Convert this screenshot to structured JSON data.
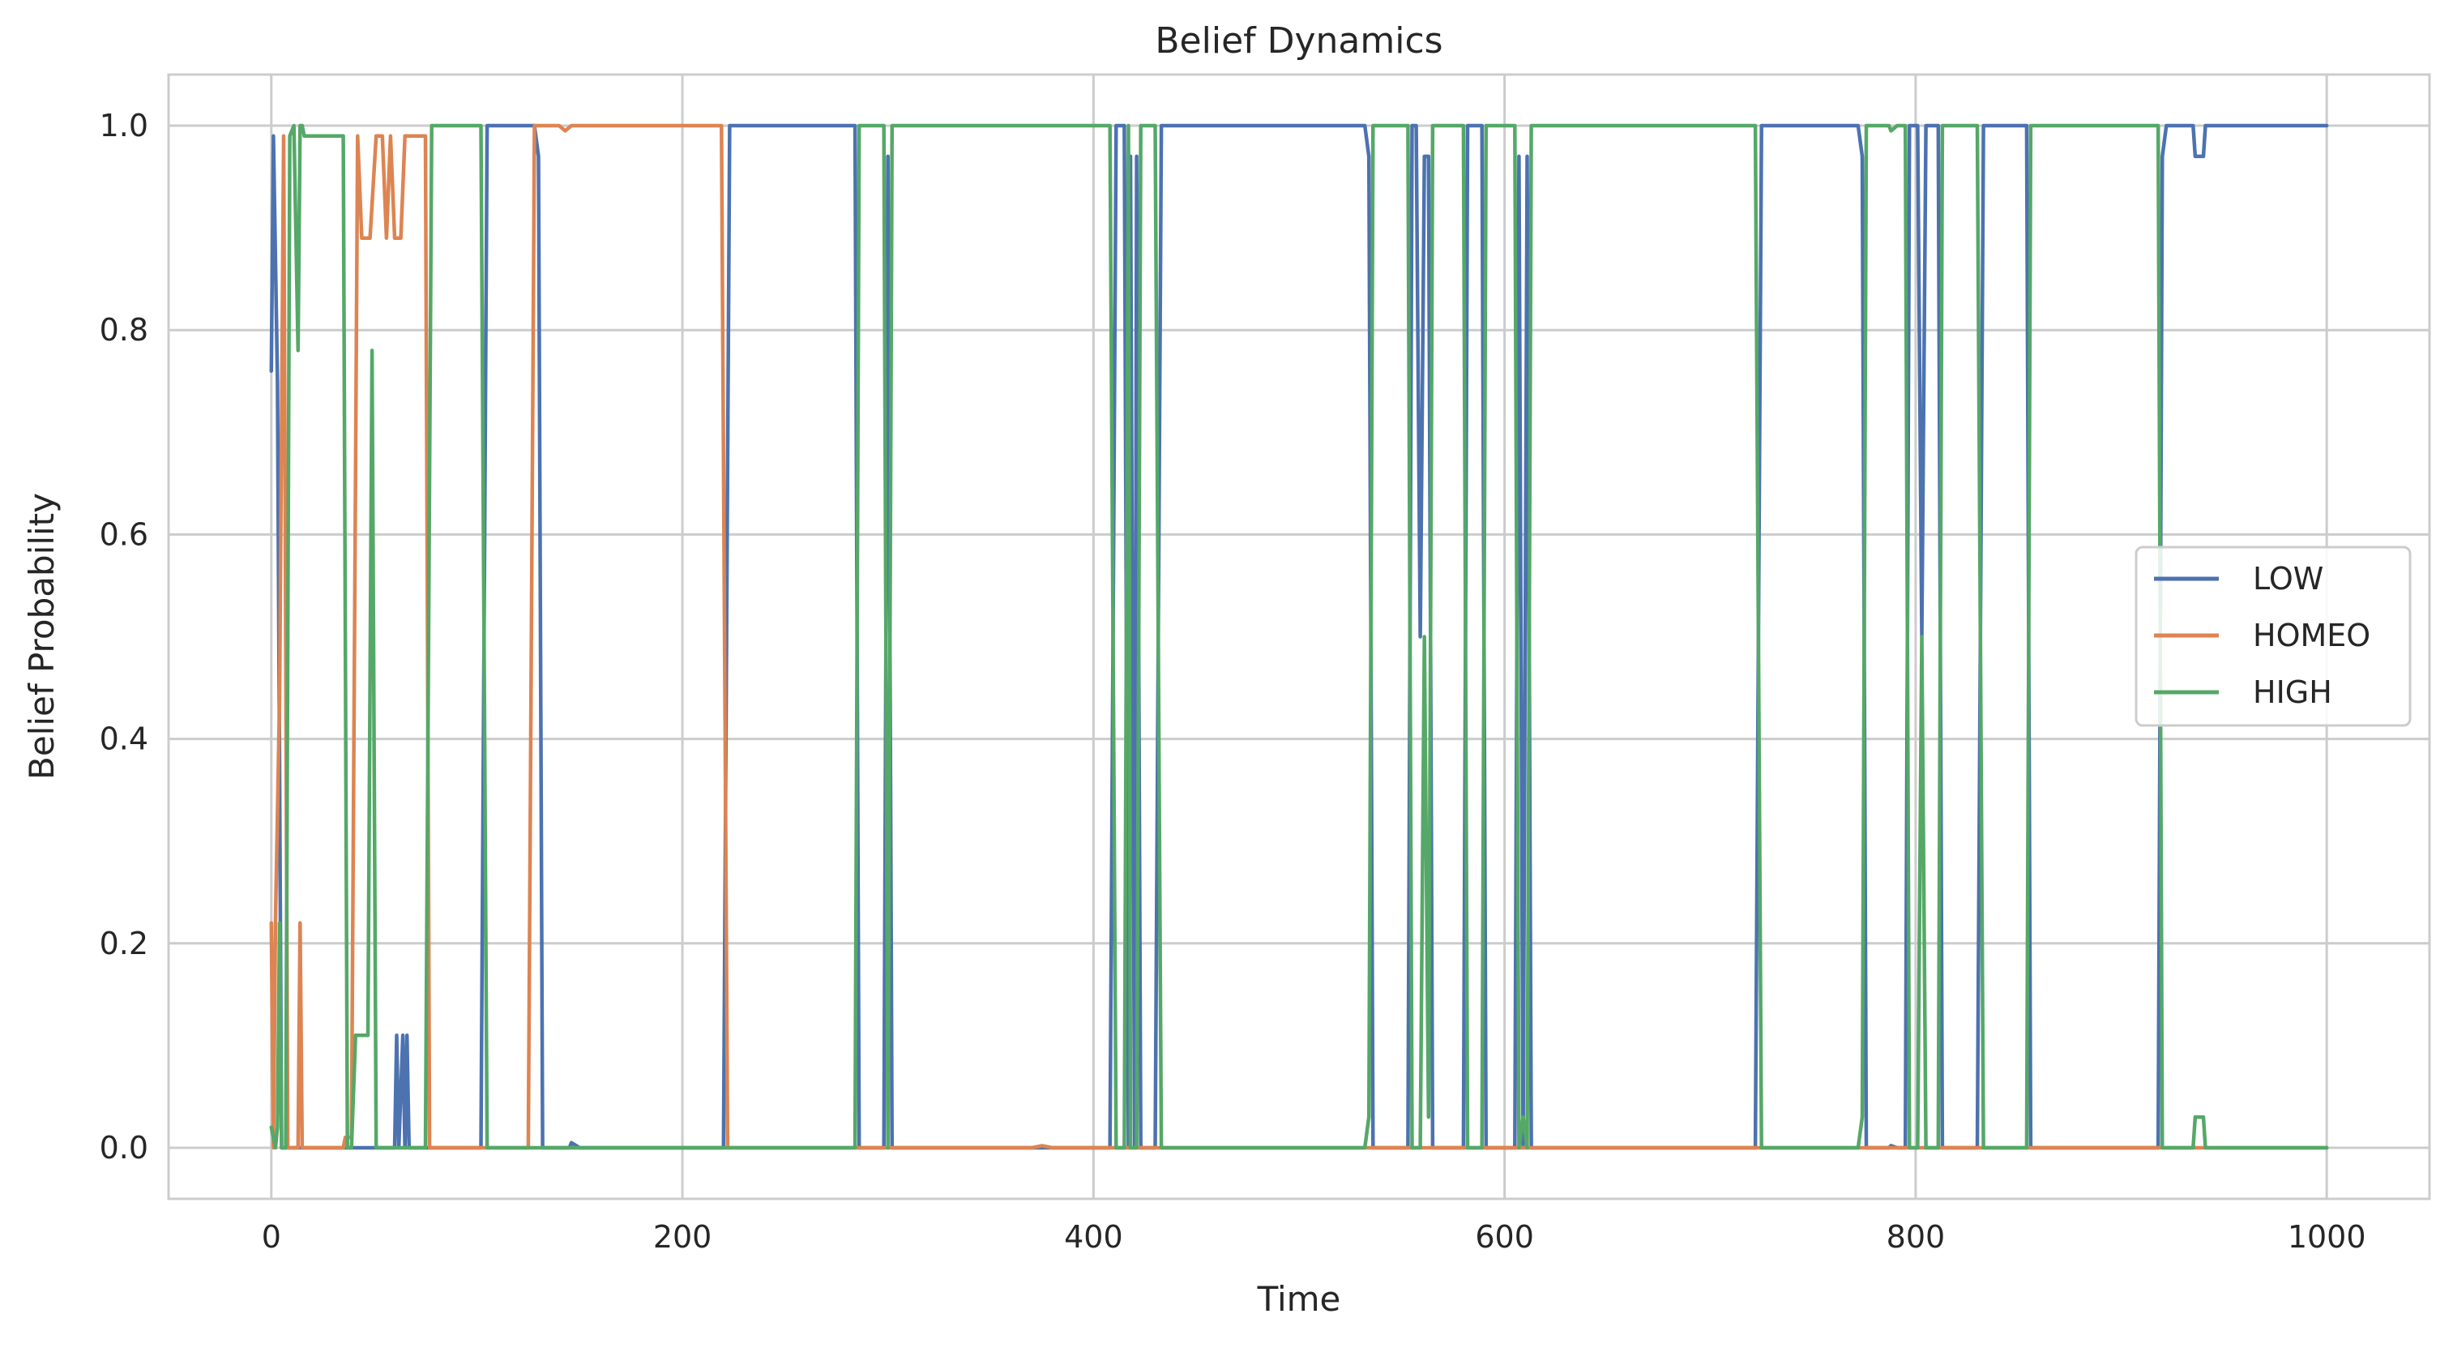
{
  "chart_data": {
    "type": "line",
    "title": "Belief Dynamics",
    "xlabel": "Time",
    "ylabel": "Belief Probability",
    "xlim": [
      -50,
      1050
    ],
    "ylim": [
      -0.05,
      1.05
    ],
    "xticks": [
      0,
      200,
      400,
      600,
      800,
      1000
    ],
    "xtick_labels": [
      "0",
      "200",
      "400",
      "600",
      "800",
      "1000"
    ],
    "yticks": [
      0.0,
      0.2,
      0.4,
      0.6,
      0.8,
      1.0
    ],
    "ytick_labels": [
      "0.0",
      "0.2",
      "0.4",
      "0.6",
      "0.8",
      "1.0"
    ],
    "grid": true,
    "legend_position": "center-right",
    "series": [
      {
        "name": "LOW",
        "color": "#4c72b0",
        "points": [
          [
            0,
            0.76
          ],
          [
            1,
            0.99
          ],
          [
            3,
            0.75
          ],
          [
            5,
            0.0
          ],
          [
            12,
            0.0
          ],
          [
            60,
            0.0
          ],
          [
            61,
            0.11
          ],
          [
            62,
            0.0
          ],
          [
            64,
            0.11
          ],
          [
            65,
            0.0
          ],
          [
            66,
            0.11
          ],
          [
            67,
            0.0
          ],
          [
            102,
            0.0
          ],
          [
            105,
            1.0
          ],
          [
            128,
            1.0
          ],
          [
            130,
            0.97
          ],
          [
            132,
            0.0
          ],
          [
            145,
            0.0
          ],
          [
            146,
            0.005
          ],
          [
            150,
            0.0
          ],
          [
            220,
            0.0
          ],
          [
            223,
            1.0
          ],
          [
            284,
            1.0
          ],
          [
            286,
            0.0
          ],
          [
            298,
            0.0
          ],
          [
            300,
            0.97
          ],
          [
            302,
            0.0
          ],
          [
            408,
            0.0
          ],
          [
            411,
            1.0
          ],
          [
            415,
            1.0
          ],
          [
            417,
            0.0
          ],
          [
            418,
            0.97
          ],
          [
            420,
            0.0
          ],
          [
            421,
            0.97
          ],
          [
            423,
            0.0
          ],
          [
            430,
            0.0
          ],
          [
            433,
            1.0
          ],
          [
            532,
            1.0
          ],
          [
            534,
            0.97
          ],
          [
            536,
            0.0
          ],
          [
            553,
            0.0
          ],
          [
            555,
            1.0
          ],
          [
            557,
            1.0
          ],
          [
            559,
            0.5
          ],
          [
            561,
            0.97
          ],
          [
            563,
            0.97
          ],
          [
            565,
            0.0
          ],
          [
            580,
            0.0
          ],
          [
            582,
            1.0
          ],
          [
            589,
            1.0
          ],
          [
            591,
            0.0
          ],
          [
            605,
            0.0
          ],
          [
            607,
            0.97
          ],
          [
            609,
            0.0
          ],
          [
            611,
            0.97
          ],
          [
            613,
            0.0
          ],
          [
            722,
            0.0
          ],
          [
            725,
            1.0
          ],
          [
            772,
            1.0
          ],
          [
            774,
            0.97
          ],
          [
            776,
            0.0
          ],
          [
            787,
            0.0
          ],
          [
            788,
            0.002
          ],
          [
            791,
            0.0
          ],
          [
            795,
            0.0
          ],
          [
            797,
            1.0
          ],
          [
            801,
            1.0
          ],
          [
            803,
            0.5
          ],
          [
            805,
            1.0
          ],
          [
            811,
            1.0
          ],
          [
            813,
            0.0
          ],
          [
            830,
            0.0
          ],
          [
            833,
            1.0
          ],
          [
            854,
            1.0
          ],
          [
            856,
            0.0
          ],
          [
            918,
            0.0
          ],
          [
            920,
            0.97
          ],
          [
            922,
            1.0
          ],
          [
            935,
            1.0
          ],
          [
            936,
            0.97
          ],
          [
            940,
            0.97
          ],
          [
            941,
            1.0
          ],
          [
            1000,
            1.0
          ]
        ]
      },
      {
        "name": "HOMEO",
        "color": "#dd8452",
        "points": [
          [
            0,
            0.22
          ],
          [
            1,
            0.0
          ],
          [
            2,
            0.22
          ],
          [
            4,
            0.44
          ],
          [
            6,
            0.99
          ],
          [
            8,
            0.0
          ],
          [
            13,
            0.0
          ],
          [
            14,
            0.22
          ],
          [
            15,
            0.0
          ],
          [
            35,
            0.0
          ],
          [
            36,
            0.01
          ],
          [
            39,
            0.01
          ],
          [
            42,
            0.99
          ],
          [
            44,
            0.89
          ],
          [
            48,
            0.89
          ],
          [
            51,
            0.99
          ],
          [
            54,
            0.99
          ],
          [
            56,
            0.89
          ],
          [
            58,
            0.99
          ],
          [
            60,
            0.89
          ],
          [
            63,
            0.89
          ],
          [
            65,
            0.99
          ],
          [
            75,
            0.99
          ],
          [
            77,
            0.0
          ],
          [
            125,
            0.0
          ],
          [
            128,
            1.0
          ],
          [
            140,
            1.0
          ],
          [
            143,
            0.995
          ],
          [
            146,
            1.0
          ],
          [
            219,
            1.0
          ],
          [
            222,
            0.0
          ],
          [
            370,
            0.0
          ],
          [
            375,
            0.002
          ],
          [
            380,
            0.0
          ],
          [
            936,
            0.0
          ],
          [
            1000,
            0.0
          ]
        ]
      },
      {
        "name": "HIGH",
        "color": "#55a868",
        "points": [
          [
            0,
            0.02
          ],
          [
            2,
            0.0
          ],
          [
            3,
            0.02
          ],
          [
            4,
            0.22
          ],
          [
            5,
            0.0
          ],
          [
            7,
            0.0
          ],
          [
            9,
            0.99
          ],
          [
            11,
            1.0
          ],
          [
            13,
            0.78
          ],
          [
            14,
            1.0
          ],
          [
            15,
            1.0
          ],
          [
            16,
            0.99
          ],
          [
            35,
            0.99
          ],
          [
            37,
            0.0
          ],
          [
            39,
            0.0
          ],
          [
            41,
            0.11
          ],
          [
            47,
            0.11
          ],
          [
            49,
            0.78
          ],
          [
            51,
            0.0
          ],
          [
            75,
            0.0
          ],
          [
            78,
            1.0
          ],
          [
            102,
            1.0
          ],
          [
            105,
            0.0
          ],
          [
            284,
            0.0
          ],
          [
            286,
            1.0
          ],
          [
            298,
            1.0
          ],
          [
            300,
            0.0
          ],
          [
            302,
            1.0
          ],
          [
            408,
            1.0
          ],
          [
            411,
            0.0
          ],
          [
            415,
            0.0
          ],
          [
            417,
            1.0
          ],
          [
            418,
            0.0
          ],
          [
            421,
            0.0
          ],
          [
            423,
            1.0
          ],
          [
            430,
            1.0
          ],
          [
            433,
            0.0
          ],
          [
            532,
            0.0
          ],
          [
            534,
            0.03
          ],
          [
            536,
            1.0
          ],
          [
            553,
            1.0
          ],
          [
            555,
            0.0
          ],
          [
            559,
            0.0
          ],
          [
            561,
            0.5
          ],
          [
            563,
            0.03
          ],
          [
            565,
            1.0
          ],
          [
            580,
            1.0
          ],
          [
            582,
            0.0
          ],
          [
            589,
            0.0
          ],
          [
            591,
            1.0
          ],
          [
            605,
            1.0
          ],
          [
            607,
            0.0
          ],
          [
            609,
            0.03
          ],
          [
            611,
            0.0
          ],
          [
            613,
            1.0
          ],
          [
            722,
            1.0
          ],
          [
            725,
            0.0
          ],
          [
            772,
            0.0
          ],
          [
            774,
            0.03
          ],
          [
            776,
            1.0
          ],
          [
            787,
            1.0
          ],
          [
            788,
            0.995
          ],
          [
            791,
            1.0
          ],
          [
            795,
            1.0
          ],
          [
            797,
            0.0
          ],
          [
            801,
            0.0
          ],
          [
            803,
            0.5
          ],
          [
            805,
            0.0
          ],
          [
            811,
            0.0
          ],
          [
            813,
            1.0
          ],
          [
            830,
            1.0
          ],
          [
            833,
            0.0
          ],
          [
            854,
            0.0
          ],
          [
            856,
            1.0
          ],
          [
            918,
            1.0
          ],
          [
            920,
            0.0
          ],
          [
            935,
            0.0
          ],
          [
            936,
            0.03
          ],
          [
            940,
            0.03
          ],
          [
            941,
            0.0
          ],
          [
            1000,
            0.0
          ]
        ]
      }
    ]
  }
}
